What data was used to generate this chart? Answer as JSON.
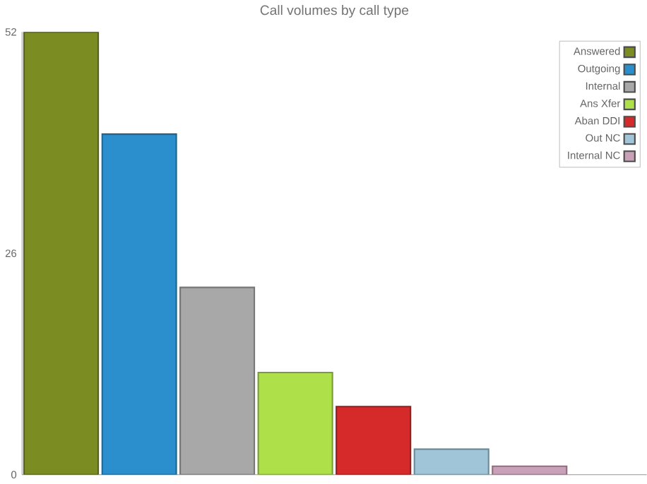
{
  "chart_data": {
    "type": "bar",
    "title": "Call volumes by call type",
    "categories": [
      null,
      null,
      null,
      null,
      null,
      null,
      null
    ],
    "series": [
      {
        "name": "Answered",
        "color": "#7a8c22",
        "values": [
          52,
          null,
          null,
          null,
          null,
          null,
          null
        ]
      },
      {
        "name": "Outgoing",
        "color": "#2a8fcc",
        "values": [
          null,
          40,
          null,
          null,
          null,
          null,
          null
        ]
      },
      {
        "name": "Internal",
        "color": "#a8a8a8",
        "values": [
          null,
          null,
          22,
          null,
          null,
          null,
          null
        ]
      },
      {
        "name": "Ans Xfer",
        "color": "#aee04a",
        "values": [
          null,
          null,
          null,
          12,
          null,
          null,
          null
        ]
      },
      {
        "name": "Aban DDI",
        "color": "#d62a2a",
        "values": [
          null,
          null,
          null,
          null,
          8,
          null,
          null
        ]
      },
      {
        "name": "Out NC",
        "color": "#a0c4d8",
        "values": [
          null,
          null,
          null,
          null,
          null,
          3,
          null
        ]
      },
      {
        "name": "Internal NC",
        "color": "#c8a0b8",
        "values": [
          null,
          null,
          null,
          null,
          null,
          null,
          1
        ]
      }
    ],
    "stacked": true,
    "ylim": [
      0,
      52
    ],
    "yticks": [
      0,
      26,
      52
    ],
    "grid": false,
    "legend": "top right"
  }
}
